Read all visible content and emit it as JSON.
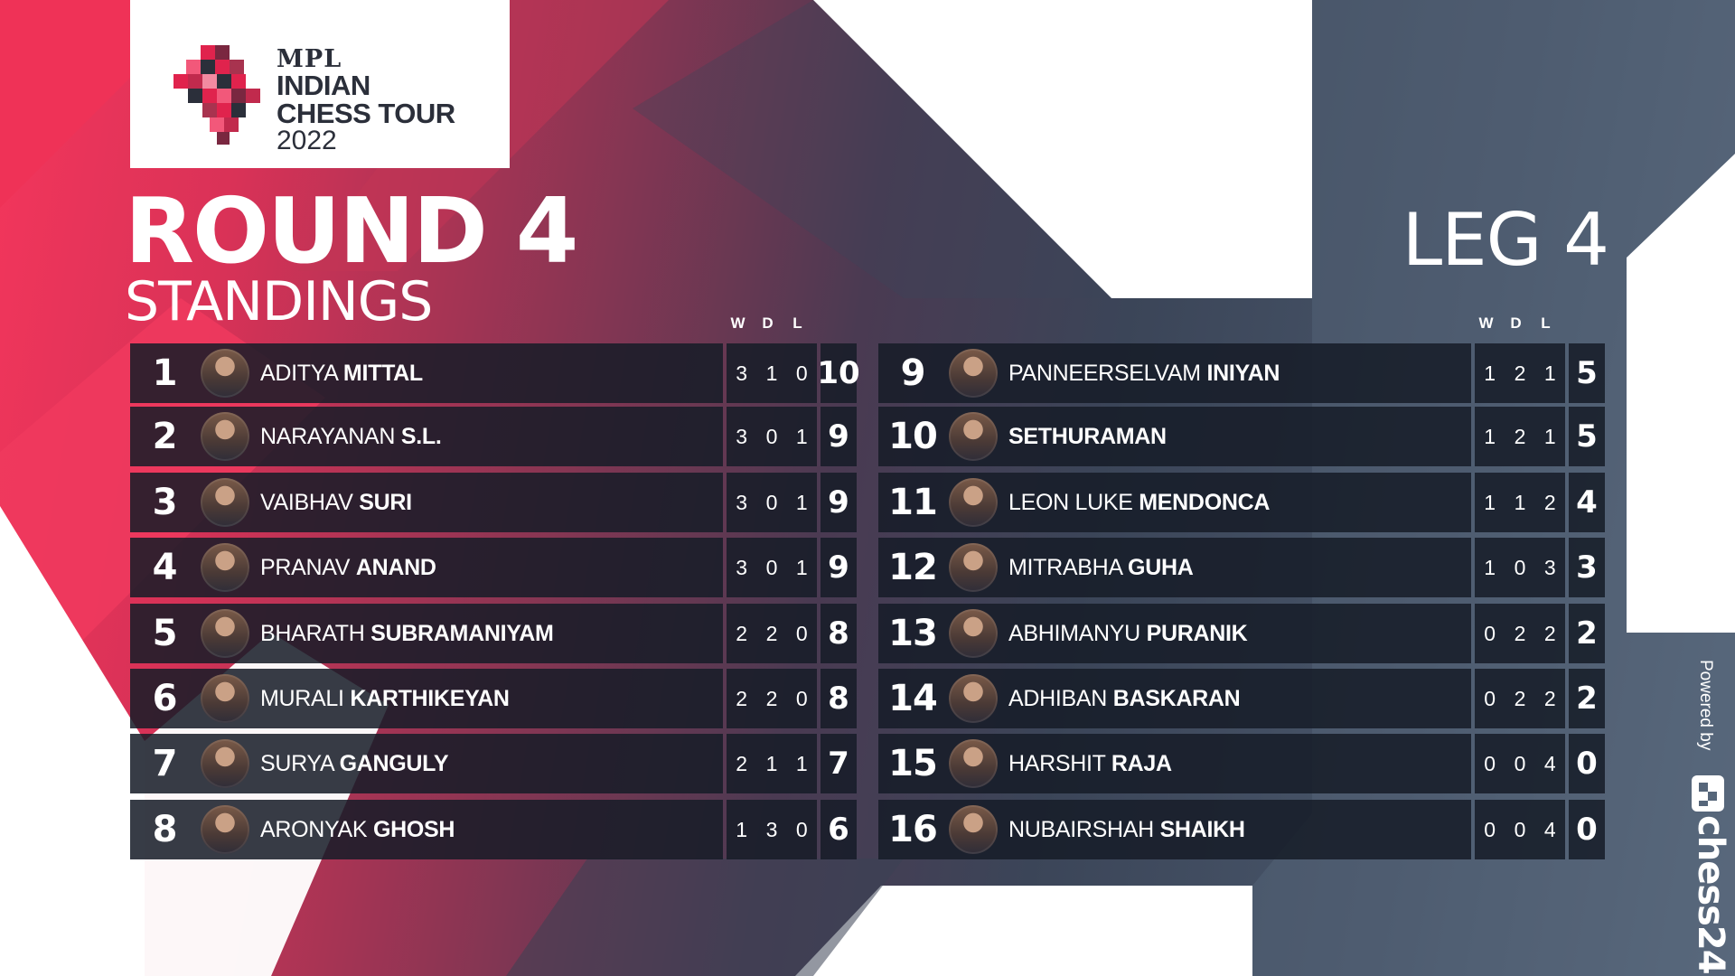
{
  "logo": {
    "line1": "MPL",
    "line2": "INDIAN",
    "line3": "CHESS TOUR",
    "line4": "2022"
  },
  "header": {
    "round": "ROUND 4",
    "subtitle": "STANDINGS",
    "leg": "LEG 4"
  },
  "columns": {
    "w": "W",
    "d": "D",
    "l": "L"
  },
  "standings_left": [
    {
      "rank": "1",
      "first": "ADITYA",
      "last": "MITTAL",
      "w": "3",
      "d": "1",
      "l": "0",
      "pts": "10"
    },
    {
      "rank": "2",
      "first": "NARAYANAN",
      "last": "S.L.",
      "w": "3",
      "d": "0",
      "l": "1",
      "pts": "9"
    },
    {
      "rank": "3",
      "first": "VAIBHAV",
      "last": "SURI",
      "w": "3",
      "d": "0",
      "l": "1",
      "pts": "9"
    },
    {
      "rank": "4",
      "first": "PRANAV",
      "last": "ANAND",
      "w": "3",
      "d": "0",
      "l": "1",
      "pts": "9"
    },
    {
      "rank": "5",
      "first": "BHARATH",
      "last": "SUBRAMANIYAM",
      "w": "2",
      "d": "2",
      "l": "0",
      "pts": "8"
    },
    {
      "rank": "6",
      "first": "MURALI",
      "last": "KARTHIKEYAN",
      "w": "2",
      "d": "2",
      "l": "0",
      "pts": "8"
    },
    {
      "rank": "7",
      "first": "SURYA",
      "last": "GANGULY",
      "w": "2",
      "d": "1",
      "l": "1",
      "pts": "7"
    },
    {
      "rank": "8",
      "first": "ARONYAK",
      "last": "GHOSH",
      "w": "1",
      "d": "3",
      "l": "0",
      "pts": "6"
    }
  ],
  "standings_right": [
    {
      "rank": "9",
      "first": "PANNEERSELVAM",
      "last": "INIYAN",
      "w": "1",
      "d": "2",
      "l": "1",
      "pts": "5"
    },
    {
      "rank": "10",
      "first": "",
      "last": "SETHURAMAN",
      "w": "1",
      "d": "2",
      "l": "1",
      "pts": "5"
    },
    {
      "rank": "11",
      "first": "LEON LUKE",
      "last": "MENDONCA",
      "w": "1",
      "d": "1",
      "l": "2",
      "pts": "4"
    },
    {
      "rank": "12",
      "first": "MITRABHA",
      "last": "GUHA",
      "w": "1",
      "d": "0",
      "l": "3",
      "pts": "3"
    },
    {
      "rank": "13",
      "first": "ABHIMANYU",
      "last": "PURANIK",
      "w": "0",
      "d": "2",
      "l": "2",
      "pts": "2"
    },
    {
      "rank": "14",
      "first": "ADHIBAN",
      "last": "BASKARAN",
      "w": "0",
      "d": "2",
      "l": "2",
      "pts": "2"
    },
    {
      "rank": "15",
      "first": "HARSHIT",
      "last": "RAJA",
      "w": "0",
      "d": "0",
      "l": "4",
      "pts": "0"
    },
    {
      "rank": "16",
      "first": "NUBAIRSHAH",
      "last": "SHAIKH",
      "w": "0",
      "d": "0",
      "l": "4",
      "pts": "0"
    }
  ],
  "footer": {
    "powered_by": "Powered by",
    "brand": "chess24"
  },
  "colors": {
    "accent_red": "#f4365c",
    "row_bg": "#161c28",
    "white_shape": "#ffffff",
    "slate": "#475468"
  },
  "icons": [
    "mpl-logo-mark-icon",
    "chess24-logo-icon",
    "player-avatar-icon"
  ]
}
